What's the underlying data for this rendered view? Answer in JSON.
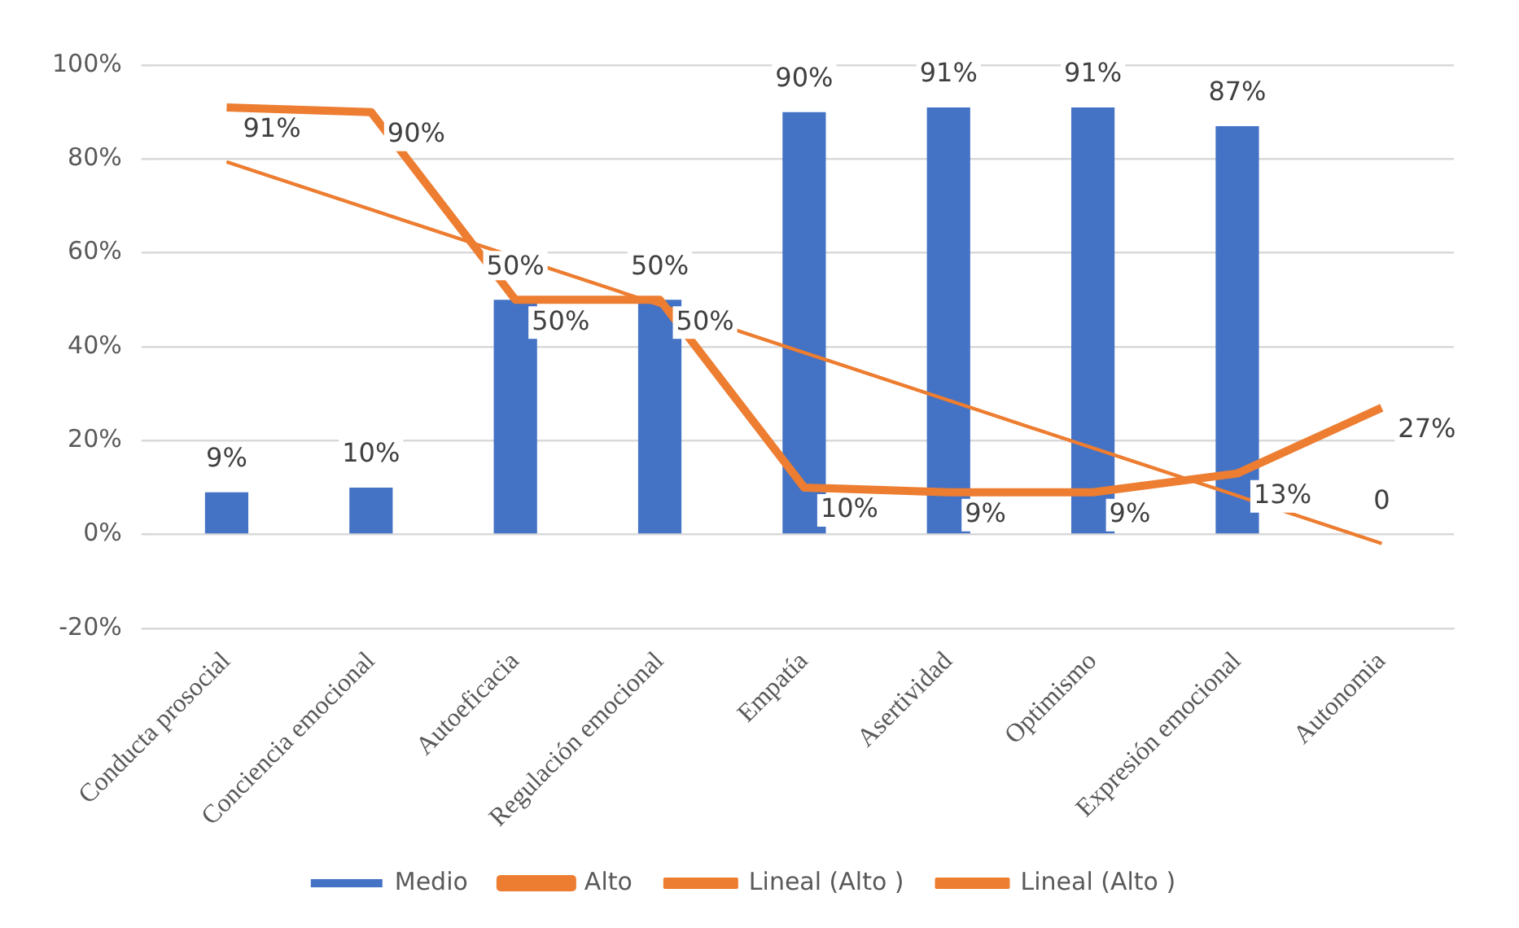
{
  "chart_data": {
    "type": "bar",
    "categories": [
      "Conducta prosocial",
      "Conciencia emocional",
      "Autoeficacia",
      "Regulación emocional",
      "Empatía",
      "Asertividad",
      "Optimismo",
      "Expresión emocional",
      "Autonomia"
    ],
    "series": [
      {
        "name": "Medio",
        "color": "#4472c4",
        "values": [
          9,
          10,
          50,
          50,
          90,
          91,
          91,
          87,
          0
        ],
        "value_labels": [
          "9%",
          "10%",
          "50%",
          "50%",
          "90%",
          "91%",
          "91%",
          "87%",
          "0"
        ]
      },
      {
        "name": "Alto",
        "type": "line",
        "color": "#ed7d31",
        "values": [
          91,
          90,
          50,
          50,
          10,
          9,
          9,
          13,
          27
        ],
        "value_labels": [
          "91%",
          "90%",
          "50%",
          "50%",
          "10%",
          "9%",
          "9%",
          "13%",
          "27%"
        ]
      },
      {
        "name": "Lineal (Alto )",
        "type": "line",
        "color": "#ed7d31",
        "values": [
          79.4,
          null,
          null,
          null,
          null,
          null,
          null,
          null,
          -1.9
        ]
      },
      {
        "name": "Lineal (Alto )",
        "type": "line",
        "color": "#ed7d31",
        "values": [
          79.4,
          null,
          null,
          null,
          null,
          null,
          null,
          null,
          -1.9
        ]
      }
    ],
    "ylim": [
      -20,
      100
    ],
    "yticks": [
      {
        "value": -20,
        "label": "-20%"
      },
      {
        "value": 0,
        "label": "0%"
      },
      {
        "value": 20,
        "label": "20%"
      },
      {
        "value": 40,
        "label": "40%"
      },
      {
        "value": 60,
        "label": "60%"
      },
      {
        "value": 80,
        "label": "80%"
      },
      {
        "value": 100,
        "label": "100%"
      }
    ],
    "grid": "y",
    "legend": "bottom",
    "marker": "none"
  }
}
